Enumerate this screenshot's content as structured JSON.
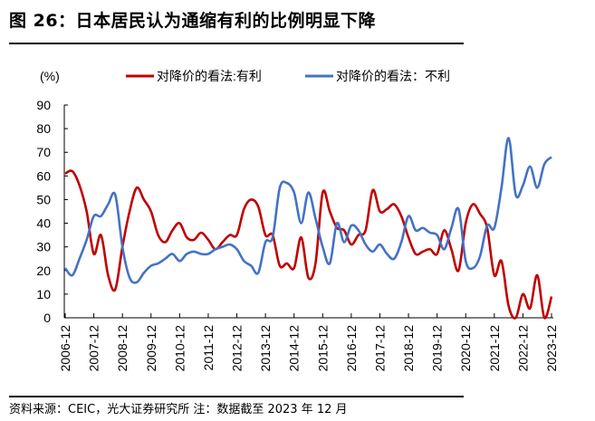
{
  "title": "图 26：日本居民认为通缩有利的比例明显下降",
  "footer": "资料来源：CEIC，光大证券研究所 注：数据截至 2023 年 12 月",
  "chart_data": {
    "type": "line",
    "title": "图 26：日本居民认为通缩有利的比例明显下降",
    "ylabel": "(%)",
    "xlabel": "",
    "ylim": [
      0,
      90
    ],
    "yticks": [
      0,
      10,
      20,
      30,
      40,
      50,
      60,
      70,
      80,
      90
    ],
    "xtick_labels": [
      "2006-12",
      "2007-12",
      "2008-12",
      "2009-12",
      "2010-12",
      "2011-12",
      "2012-12",
      "2013-12",
      "2014-12",
      "2015-12",
      "2016-12",
      "2017-12",
      "2018-12",
      "2019-12",
      "2020-12",
      "2021-12",
      "2022-12",
      "2023-12"
    ],
    "x_frequency": "quarterly",
    "x_start": "2006-12",
    "x_end": "2023-12",
    "grid": false,
    "legend_position": "top",
    "series": [
      {
        "name": "对降价的看法:有利",
        "color": "#c00000",
        "values": [
          61,
          62,
          56,
          45,
          27,
          35,
          18,
          12,
          30,
          45,
          55,
          50,
          45,
          35,
          32,
          37,
          40,
          34,
          33,
          36,
          33,
          29,
          32,
          35,
          35,
          46,
          50,
          47,
          35,
          35,
          22,
          23,
          21,
          34,
          17,
          23,
          53,
          45,
          38,
          37,
          31,
          35,
          37,
          54,
          45,
          46,
          48,
          43,
          34,
          27,
          28,
          29,
          27,
          37,
          29,
          20,
          40,
          48,
          44,
          38,
          18,
          24,
          5,
          0,
          10,
          4,
          18,
          0,
          9
        ]
      },
      {
        "name": "对降价的看法：不利",
        "color": "#4472c4",
        "values": [
          21,
          18,
          25,
          33,
          43,
          43,
          48,
          52,
          30,
          17,
          15,
          19,
          22,
          23,
          25,
          27,
          24,
          27,
          28,
          27,
          27,
          29,
          30,
          31,
          29,
          24,
          22,
          19,
          32,
          34,
          55,
          57,
          53,
          40,
          53,
          42,
          30,
          23,
          40,
          32,
          39,
          37,
          31,
          28,
          31,
          27,
          25,
          32,
          43,
          37,
          38,
          36,
          35,
          29,
          38,
          46,
          24,
          21,
          26,
          39,
          38,
          55,
          76,
          52,
          56,
          64,
          55,
          65,
          68
        ]
      }
    ]
  }
}
